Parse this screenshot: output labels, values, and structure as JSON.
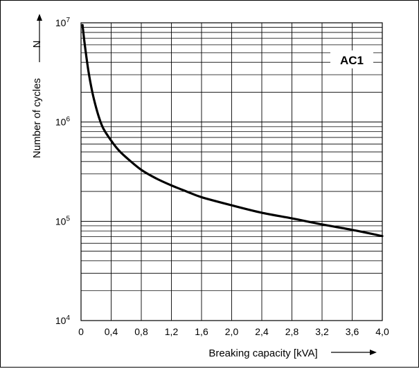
{
  "chart_data": {
    "type": "line",
    "curve_label": "AC1",
    "xlabel": "Breaking capacity [kVA]",
    "ylabel": "Number of cycles",
    "ylabel_symbol": "N",
    "xlim": [
      0,
      4.0
    ],
    "ylim": [
      10000,
      10000000
    ],
    "y_scale": "log",
    "grid": true,
    "x_ticks": [
      0,
      0.4,
      0.8,
      1.2,
      1.6,
      2.0,
      2.4,
      2.8,
      3.2,
      3.6,
      4.0
    ],
    "x_tick_labels": [
      "0",
      "0,4",
      "0,8",
      "1,2",
      "1,6",
      "2,0",
      "2,4",
      "2,8",
      "3,2",
      "3,6",
      "4,0"
    ],
    "y_ticks": [
      {
        "value": 10000,
        "base": "10",
        "exp": "4"
      },
      {
        "value": 100000,
        "base": "10",
        "exp": "5"
      },
      {
        "value": 1000000,
        "base": "10",
        "exp": "6"
      },
      {
        "value": 10000000,
        "base": "10",
        "exp": "7"
      }
    ],
    "series": [
      {
        "x": [
          0.02,
          0.05,
          0.1,
          0.15,
          0.2,
          0.25,
          0.3,
          0.4,
          0.5,
          0.6,
          0.8,
          1.0,
          1.2,
          1.4,
          1.6,
          2.0,
          2.4,
          2.8,
          3.2,
          3.6,
          4.0
        ],
        "y": [
          9500000,
          6000000,
          3200000,
          2000000,
          1400000,
          1050000,
          850000,
          650000,
          520000,
          440000,
          330000,
          270000,
          230000,
          200000,
          175000,
          145000,
          122000,
          107000,
          93000,
          82000,
          71000
        ]
      }
    ]
  }
}
